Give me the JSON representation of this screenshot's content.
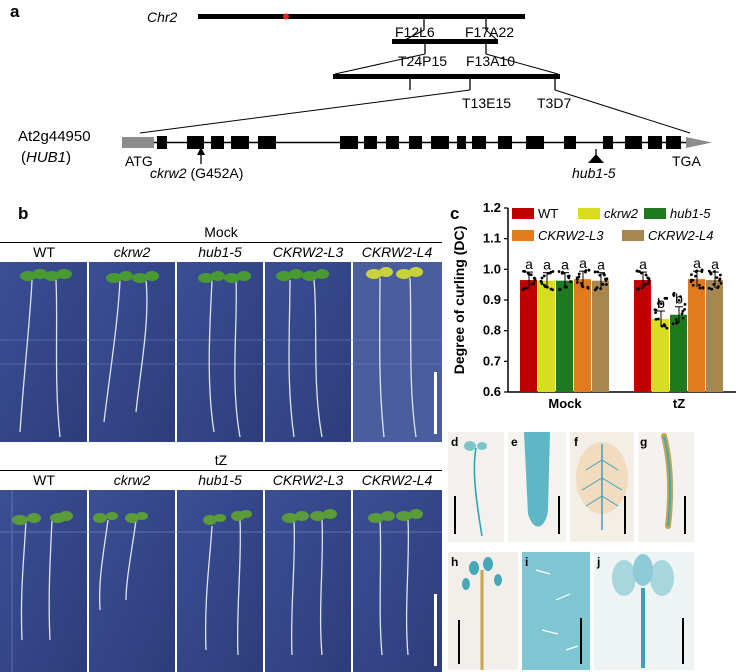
{
  "panel_a": {
    "letter": "a",
    "chromosome": "Chr2",
    "markers_top": [
      "F12L6",
      "F17A22"
    ],
    "markers_mid": [
      "T24P15",
      "F13A10"
    ],
    "markers_low": [
      "T13E15",
      "T3D7"
    ],
    "gene_id": "At2g44950",
    "gene_name_open": "(",
    "gene_name": "HUB1",
    "gene_name_close": ")",
    "start_codon": "ATG",
    "stop_codon": "TGA",
    "mutation1_name": "ckrw2",
    "mutation1_detail": " (G452A)",
    "mutation2_name": "hub1-5"
  },
  "panel_b": {
    "letter": "b",
    "mock_title": "Mock",
    "tz_title": "tZ",
    "genotypes": [
      "WT",
      "ckrw2",
      "hub1-5",
      "CKRW2-L3",
      "CKRW2-L4"
    ]
  },
  "panel_c": {
    "letter": "c",
    "chart_data": {
      "type": "bar",
      "ylabel": "Degree of curling (DC)",
      "categories": [
        "Mock",
        "tZ"
      ],
      "ylim": [
        0.6,
        1.2
      ],
      "yticks": [
        "0.6",
        "0.7",
        "0.8",
        "0.9",
        "1.0",
        "1.1",
        "1.2"
      ],
      "series": [
        {
          "name": "WT",
          "color": "#c00000",
          "values": [
            0.965,
            0.965
          ],
          "letters": [
            "a",
            "a"
          ]
        },
        {
          "name": "ckrw2",
          "color": "#d8dc23",
          "values": [
            0.963,
            0.838
          ],
          "letters": [
            "a",
            "b"
          ]
        },
        {
          "name": "hub1-5",
          "color": "#1e7a1e",
          "values": [
            0.963,
            0.852
          ],
          "letters": [
            "a",
            "b"
          ]
        },
        {
          "name": "CKRW2-L3",
          "color": "#e07b20",
          "values": [
            0.968,
            0.968
          ],
          "letters": [
            "a",
            "a"
          ]
        },
        {
          "name": "CKRW2-L4",
          "color": "#a88650",
          "values": [
            0.963,
            0.965
          ],
          "letters": [
            "a",
            "a"
          ]
        }
      ],
      "legend_placement": "top"
    }
  },
  "gus_panels": [
    "d",
    "e",
    "f",
    "g",
    "h",
    "i",
    "j"
  ],
  "colors": {
    "stain": "#2aa6b8",
    "photo_bg": "#33468a"
  }
}
